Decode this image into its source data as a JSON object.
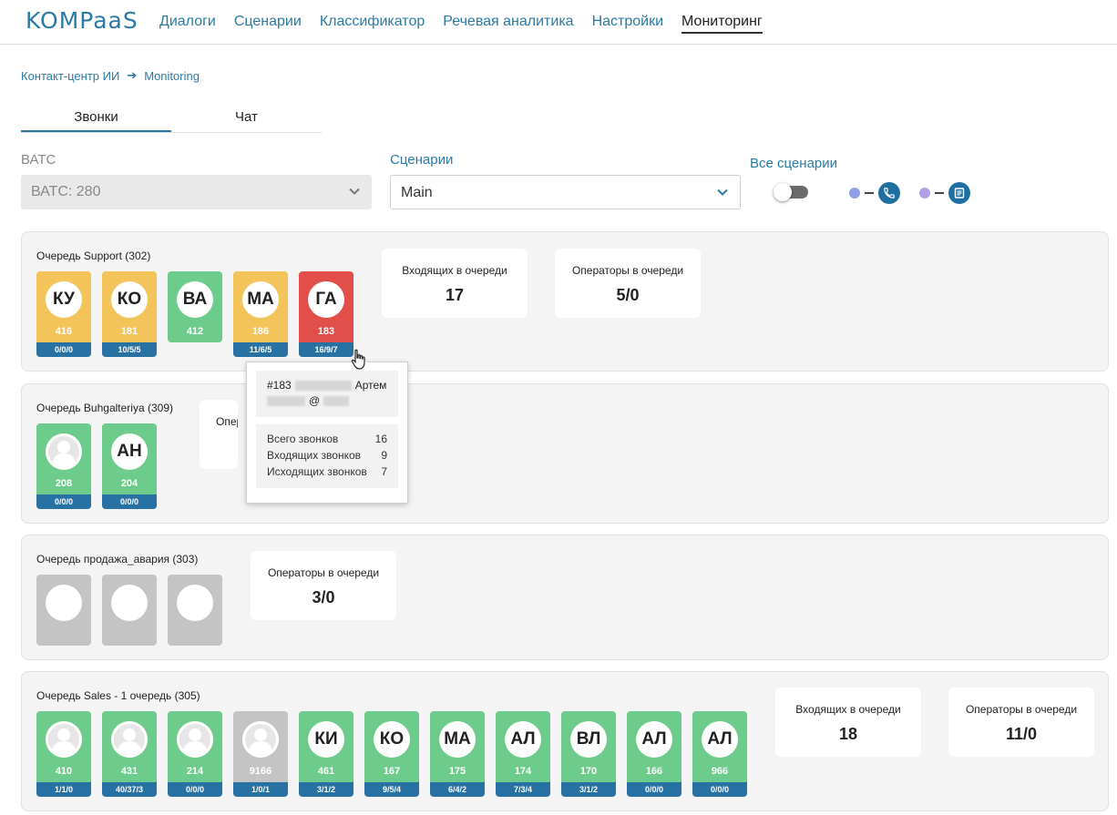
{
  "header": {
    "logo": "KOMPaaS",
    "nav": [
      "Диалоги",
      "Сценарии",
      "Классификатор",
      "Речевая аналитика",
      "Настройки",
      "Мониторинг"
    ]
  },
  "breadcrumb": {
    "root": "Контакт-центр ИИ",
    "current": "Monitoring"
  },
  "tabs": [
    "Звонки",
    "Чат"
  ],
  "filters": {
    "vats_label": "ВАТС",
    "vats_value": "ВАТС: 280",
    "scen_label": "Сценарии",
    "scen_value": "Main",
    "all_label": "Все сценарии"
  },
  "colors": {
    "legend_dot_1": "#8f9fe6",
    "legend_dot_2": "#b39fe8",
    "accent": "#2a7aa6",
    "status_bar": "#2872a3"
  },
  "legend_icons": [
    "phone-icon",
    "chat-icon"
  ],
  "queues": [
    {
      "title": "Очередь Support (302)",
      "operators": [
        {
          "initials": "КУ",
          "ext": "416",
          "stats": "0/0/0",
          "color": "yellow"
        },
        {
          "initials": "КО",
          "ext": "181",
          "stats": "10/5/5",
          "color": "yellow"
        },
        {
          "initials": "ВА",
          "ext": "412",
          "stats": "",
          "color": "green"
        },
        {
          "initials": "МА",
          "ext": "186",
          "stats": "11/6/5",
          "color": "yellow"
        },
        {
          "initials": "ГА",
          "ext": "183",
          "stats": "16/9/7",
          "color": "red"
        }
      ],
      "cards": [
        {
          "title": "Входящих в очереди",
          "value": "17"
        },
        {
          "title": "Операторы в очереди",
          "value": "5/0"
        }
      ]
    },
    {
      "title": "Очередь Buhgalteriya (309)",
      "operators": [
        {
          "initials": "",
          "ext": "208",
          "stats": "0/0/0",
          "color": "green"
        },
        {
          "initials": "АН",
          "ext": "204",
          "stats": "0/0/0",
          "color": "green"
        }
      ],
      "cards": [
        {
          "title": "Операторы в очереди",
          "value": ""
        }
      ]
    },
    {
      "title": "Очередь продажа_авария (303)",
      "operators": [
        {
          "initials": "",
          "ext": "",
          "stats": "",
          "color": "grey"
        },
        {
          "initials": "",
          "ext": "",
          "stats": "",
          "color": "grey"
        },
        {
          "initials": "",
          "ext": "",
          "stats": "",
          "color": "grey"
        }
      ],
      "cards": [
        {
          "title": "Операторы в очереди",
          "value": "3/0"
        }
      ]
    },
    {
      "title": "Очередь Sales - 1 очередь (305)",
      "operators": [
        {
          "initials": "",
          "ext": "410",
          "stats": "1/1/0",
          "color": "green"
        },
        {
          "initials": "",
          "ext": "431",
          "stats": "40/37/3",
          "color": "green"
        },
        {
          "initials": "",
          "ext": "214",
          "stats": "0/0/0",
          "color": "green"
        },
        {
          "initials": "",
          "ext": "9166",
          "stats": "1/0/1",
          "color": "grey"
        },
        {
          "initials": "КИ",
          "ext": "461",
          "stats": "3/1/2",
          "color": "green"
        },
        {
          "initials": "КО",
          "ext": "167",
          "stats": "9/5/4",
          "color": "green"
        },
        {
          "initials": "МА",
          "ext": "175",
          "stats": "6/4/2",
          "color": "green"
        },
        {
          "initials": "АЛ",
          "ext": "174",
          "stats": "7/3/4",
          "color": "green"
        },
        {
          "initials": "ВЛ",
          "ext": "170",
          "stats": "3/1/2",
          "color": "green"
        },
        {
          "initials": "АЛ",
          "ext": "166",
          "stats": "0/0/0",
          "color": "green"
        },
        {
          "initials": "АЛ",
          "ext": "966",
          "stats": "0/0/0",
          "color": "green"
        }
      ],
      "cards": [
        {
          "title": "Входящих в очереди",
          "value": "18"
        },
        {
          "title": "Операторы в очереди",
          "value": "11/0"
        }
      ]
    }
  ],
  "tooltip": {
    "id": "#183",
    "name": "Артем",
    "email_part": "@",
    "rows": [
      {
        "label": "Всего звонков",
        "value": "16"
      },
      {
        "label": "Входящих звонков",
        "value": "9"
      },
      {
        "label": "Исходящих звонков",
        "value": "7"
      }
    ]
  }
}
